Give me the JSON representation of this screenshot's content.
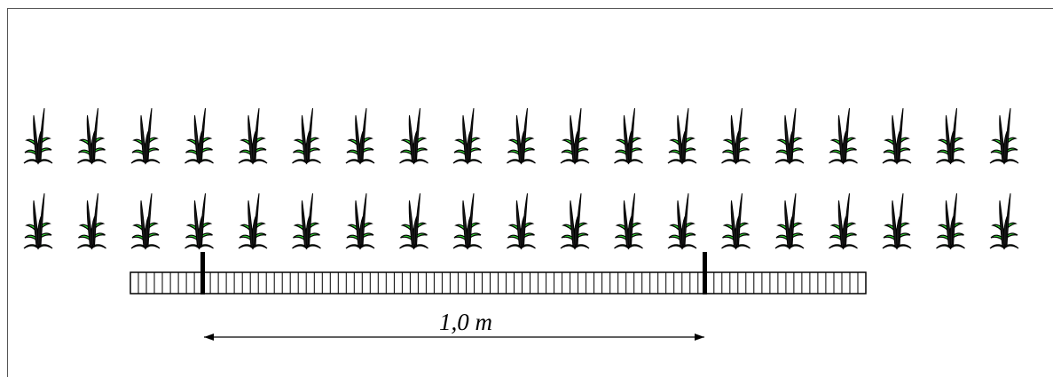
{
  "diagram": {
    "measurement_label": "1,0 m",
    "plant_rows": 2,
    "plants_per_row": 19,
    "ruler_tick_count": 92,
    "colors": {
      "leaf_fill": "#33dd33",
      "outline": "#000000",
      "background": "#ffffff"
    }
  }
}
